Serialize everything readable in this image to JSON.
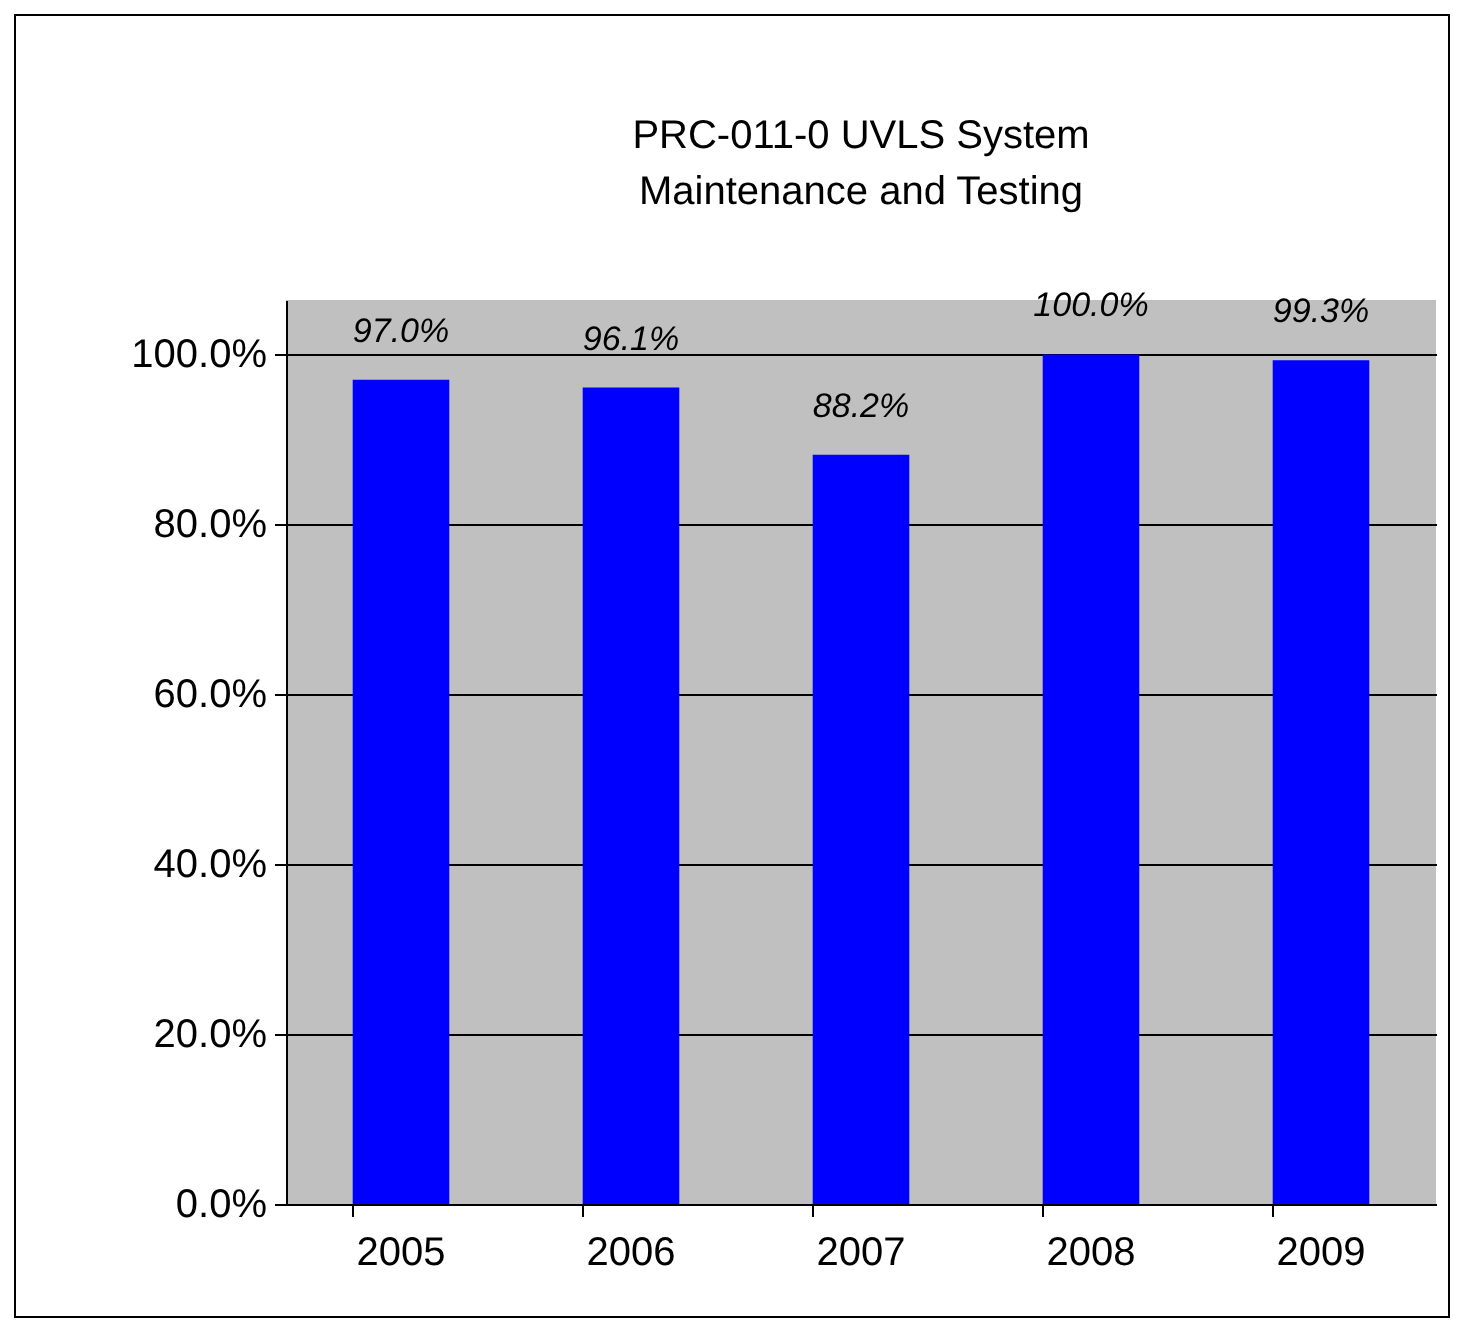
{
  "chart_data": {
    "type": "bar",
    "title": "PRC-011-0 UVLS System\nMaintenance and Testing",
    "categories": [
      "2005",
      "2006",
      "2007",
      "2008",
      "2009"
    ],
    "series": [
      {
        "color": "#0000ff",
        "values": [
          97.0,
          96.1,
          88.2,
          100.0,
          99.3
        ],
        "value_labels": [
          "97.0%",
          "96.1%",
          "88.2%",
          "100.0%",
          "99.3%"
        ]
      }
    ],
    "ylim": [
      0,
      106.4
    ],
    "yticks": [
      {
        "value": 0,
        "label": "0.0%"
      },
      {
        "value": 20,
        "label": "20.0%"
      },
      {
        "value": 40,
        "label": "40.0%"
      },
      {
        "value": 60,
        "label": "60.0%"
      },
      {
        "value": 80,
        "label": "80.0%"
      },
      {
        "value": 100,
        "label": "100.0%"
      }
    ],
    "grid": "y"
  }
}
